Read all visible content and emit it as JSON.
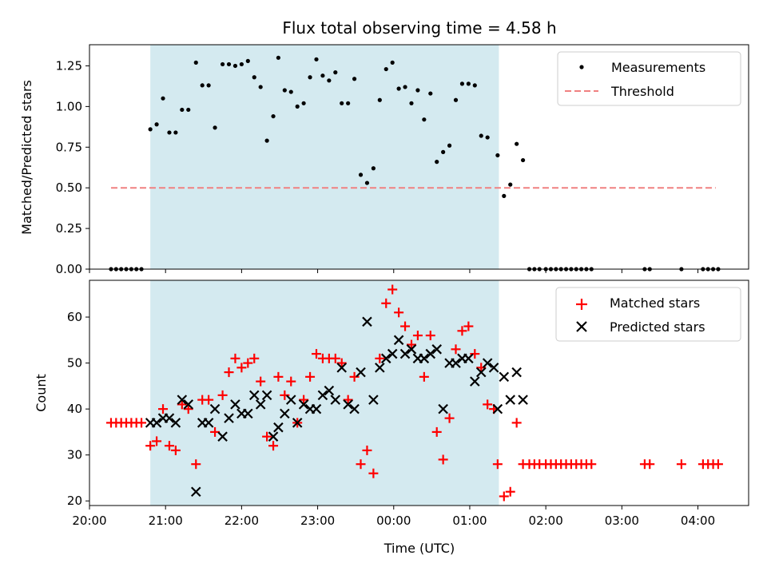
{
  "chart_data": [
    {
      "type": "scatter",
      "title": "Flux total observing time = 4.58 h",
      "ylabel": "Matched/Predicted stars",
      "xlim": [
        "20:00",
        "04:40"
      ],
      "ylim": [
        0,
        1.38
      ],
      "yticks": [
        "0.00",
        "0.25",
        "0.50",
        "0.75",
        "1.00",
        "1.25"
      ],
      "ytick_values": [
        0,
        0.25,
        0.5,
        0.75,
        1.0,
        1.25
      ],
      "shaded_span": [
        "20:48",
        "01:23"
      ],
      "shaded_color": "#d4eaf0",
      "legend": {
        "placement": "top-right",
        "entries": [
          "Measurements",
          "Threshold"
        ]
      },
      "threshold": {
        "name": "Threshold",
        "value": 0.5,
        "x": [
          "20:17",
          "04:14"
        ],
        "color": "#f08080"
      },
      "series": [
        {
          "name": "Measurements",
          "color": "#000000",
          "points": [
            [
              "20:17",
              0
            ],
            [
              "20:21",
              0
            ],
            [
              "20:25",
              0
            ],
            [
              "20:29",
              0
            ],
            [
              "20:33",
              0
            ],
            [
              "20:37",
              0
            ],
            [
              "20:41",
              0
            ],
            [
              "20:48",
              0.86
            ],
            [
              "20:53",
              0.89
            ],
            [
              "20:58",
              1.05
            ],
            [
              "21:03",
              0.84
            ],
            [
              "21:08",
              0.84
            ],
            [
              "21:13",
              0.98
            ],
            [
              "21:18",
              0.98
            ],
            [
              "21:24",
              1.27
            ],
            [
              "21:29",
              1.13
            ],
            [
              "21:34",
              1.13
            ],
            [
              "21:39",
              0.87
            ],
            [
              "21:45",
              1.26
            ],
            [
              "21:50",
              1.26
            ],
            [
              "21:55",
              1.25
            ],
            [
              "22:00",
              1.26
            ],
            [
              "22:05",
              1.28
            ],
            [
              "22:10",
              1.18
            ],
            [
              "22:15",
              1.12
            ],
            [
              "22:20",
              0.79
            ],
            [
              "22:25",
              0.94
            ],
            [
              "22:29",
              1.3
            ],
            [
              "22:34",
              1.1
            ],
            [
              "22:39",
              1.09
            ],
            [
              "22:44",
              1.0
            ],
            [
              "22:49",
              1.02
            ],
            [
              "22:54",
              1.18
            ],
            [
              "22:59",
              1.29
            ],
            [
              "23:04",
              1.19
            ],
            [
              "23:09",
              1.16
            ],
            [
              "23:14",
              1.21
            ],
            [
              "23:19",
              1.02
            ],
            [
              "23:24",
              1.02
            ],
            [
              "23:29",
              1.17
            ],
            [
              "23:34",
              0.58
            ],
            [
              "23:39",
              0.53
            ],
            [
              "23:44",
              0.62
            ],
            [
              "23:49",
              1.04
            ],
            [
              "23:54",
              1.23
            ],
            [
              "23:59",
              1.27
            ],
            [
              "00:04",
              1.11
            ],
            [
              "00:09",
              1.12
            ],
            [
              "00:14",
              1.02
            ],
            [
              "00:19",
              1.1
            ],
            [
              "00:24",
              0.92
            ],
            [
              "00:29",
              1.08
            ],
            [
              "00:34",
              0.66
            ],
            [
              "00:39",
              0.72
            ],
            [
              "00:44",
              0.76
            ],
            [
              "00:49",
              1.04
            ],
            [
              "00:54",
              1.14
            ],
            [
              "00:59",
              1.14
            ],
            [
              "01:04",
              1.13
            ],
            [
              "01:09",
              0.82
            ],
            [
              "01:14",
              0.81
            ],
            [
              "01:22",
              0.7
            ],
            [
              "01:27",
              0.45
            ],
            [
              "01:32",
              0.52
            ],
            [
              "01:37",
              0.77
            ],
            [
              "01:42",
              0.67
            ],
            [
              "01:47",
              0
            ],
            [
              "01:51",
              0
            ],
            [
              "01:55",
              0
            ],
            [
              "02:00",
              0
            ],
            [
              "02:04",
              0
            ],
            [
              "02:08",
              0
            ],
            [
              "02:12",
              0
            ],
            [
              "02:16",
              0
            ],
            [
              "02:20",
              0
            ],
            [
              "02:24",
              0
            ],
            [
              "02:28",
              0
            ],
            [
              "02:32",
              0
            ],
            [
              "02:36",
              0
            ],
            [
              "03:18",
              0
            ],
            [
              "03:22",
              0
            ],
            [
              "03:47",
              0
            ],
            [
              "04:04",
              0
            ],
            [
              "04:08",
              0
            ],
            [
              "04:12",
              0
            ],
            [
              "04:16",
              0
            ]
          ]
        }
      ]
    },
    {
      "type": "scatter",
      "xlabel": "Time (UTC)",
      "ylabel": "Count",
      "xlim": [
        "20:00",
        "04:40"
      ],
      "ylim": [
        19,
        68
      ],
      "xticks": [
        "20:00",
        "21:00",
        "22:00",
        "23:00",
        "00:00",
        "01:00",
        "02:00",
        "03:00",
        "04:00"
      ],
      "yticks": [
        "20",
        "30",
        "40",
        "50",
        "60"
      ],
      "ytick_values": [
        20,
        30,
        40,
        50,
        60
      ],
      "shaded_span": [
        "20:48",
        "01:23"
      ],
      "shaded_color": "#d4eaf0",
      "legend": {
        "placement": "top-right",
        "entries": [
          "Matched stars",
          "Predicted stars"
        ]
      },
      "series": [
        {
          "name": "Matched stars",
          "marker": "plus",
          "color": "#ff0000",
          "points": [
            [
              "20:17",
              37
            ],
            [
              "20:21",
              37
            ],
            [
              "20:25",
              37
            ],
            [
              "20:29",
              37
            ],
            [
              "20:33",
              37
            ],
            [
              "20:37",
              37
            ],
            [
              "20:41",
              37
            ],
            [
              "20:48",
              32
            ],
            [
              "20:53",
              33
            ],
            [
              "20:58",
              40
            ],
            [
              "21:03",
              32
            ],
            [
              "21:08",
              31
            ],
            [
              "21:13",
              41
            ],
            [
              "21:18",
              40
            ],
            [
              "21:24",
              28
            ],
            [
              "21:29",
              42
            ],
            [
              "21:34",
              42
            ],
            [
              "21:39",
              35
            ],
            [
              "21:45",
              43
            ],
            [
              "21:50",
              48
            ],
            [
              "21:55",
              51
            ],
            [
              "22:00",
              49
            ],
            [
              "22:05",
              50
            ],
            [
              "22:10",
              51
            ],
            [
              "22:15",
              46
            ],
            [
              "22:20",
              34
            ],
            [
              "22:25",
              32
            ],
            [
              "22:29",
              47
            ],
            [
              "22:34",
              43
            ],
            [
              "22:39",
              46
            ],
            [
              "22:44",
              37
            ],
            [
              "22:49",
              42
            ],
            [
              "22:54",
              47
            ],
            [
              "22:59",
              52
            ],
            [
              "23:04",
              51
            ],
            [
              "23:09",
              51
            ],
            [
              "23:14",
              51
            ],
            [
              "23:19",
              50
            ],
            [
              "23:24",
              42
            ],
            [
              "23:29",
              47
            ],
            [
              "23:34",
              28
            ],
            [
              "23:39",
              31
            ],
            [
              "23:44",
              26
            ],
            [
              "23:49",
              51
            ],
            [
              "23:54",
              63
            ],
            [
              "23:59",
              66
            ],
            [
              "00:04",
              61
            ],
            [
              "00:09",
              58
            ],
            [
              "00:14",
              54
            ],
            [
              "00:19",
              56
            ],
            [
              "00:24",
              47
            ],
            [
              "00:29",
              56
            ],
            [
              "00:34",
              35
            ],
            [
              "00:39",
              29
            ],
            [
              "00:44",
              38
            ],
            [
              "00:49",
              53
            ],
            [
              "00:54",
              57
            ],
            [
              "00:59",
              58
            ],
            [
              "01:04",
              52
            ],
            [
              "01:09",
              49
            ],
            [
              "01:14",
              41
            ],
            [
              "01:19",
              40
            ],
            [
              "01:22",
              28
            ],
            [
              "01:27",
              21
            ],
            [
              "01:32",
              22
            ],
            [
              "01:37",
              37
            ],
            [
              "01:42",
              28
            ],
            [
              "01:47",
              28
            ],
            [
              "01:51",
              28
            ],
            [
              "01:55",
              28
            ],
            [
              "02:00",
              28
            ],
            [
              "02:04",
              28
            ],
            [
              "02:08",
              28
            ],
            [
              "02:12",
              28
            ],
            [
              "02:16",
              28
            ],
            [
              "02:20",
              28
            ],
            [
              "02:24",
              28
            ],
            [
              "02:28",
              28
            ],
            [
              "02:32",
              28
            ],
            [
              "02:36",
              28
            ],
            [
              "03:18",
              28
            ],
            [
              "03:22",
              28
            ],
            [
              "03:47",
              28
            ],
            [
              "04:04",
              28
            ],
            [
              "04:08",
              28
            ],
            [
              "04:12",
              28
            ],
            [
              "04:16",
              28
            ]
          ]
        },
        {
          "name": "Predicted stars",
          "marker": "x",
          "color": "#000000",
          "points": [
            [
              "20:48",
              37
            ],
            [
              "20:53",
              37
            ],
            [
              "20:58",
              38
            ],
            [
              "21:03",
              38
            ],
            [
              "21:08",
              37
            ],
            [
              "21:13",
              42
            ],
            [
              "21:18",
              41
            ],
            [
              "21:24",
              22
            ],
            [
              "21:29",
              37
            ],
            [
              "21:34",
              37
            ],
            [
              "21:39",
              40
            ],
            [
              "21:45",
              34
            ],
            [
              "21:50",
              38
            ],
            [
              "21:55",
              41
            ],
            [
              "22:00",
              39
            ],
            [
              "22:05",
              39
            ],
            [
              "22:10",
              43
            ],
            [
              "22:15",
              41
            ],
            [
              "22:20",
              43
            ],
            [
              "22:25",
              34
            ],
            [
              "22:29",
              36
            ],
            [
              "22:34",
              39
            ],
            [
              "22:39",
              42
            ],
            [
              "22:44",
              37
            ],
            [
              "22:49",
              41
            ],
            [
              "22:54",
              40
            ],
            [
              "22:59",
              40
            ],
            [
              "23:04",
              43
            ],
            [
              "23:09",
              44
            ],
            [
              "23:14",
              42
            ],
            [
              "23:19",
              49
            ],
            [
              "23:24",
              41
            ],
            [
              "23:29",
              40
            ],
            [
              "23:34",
              48
            ],
            [
              "23:39",
              59
            ],
            [
              "23:44",
              42
            ],
            [
              "23:49",
              49
            ],
            [
              "23:54",
              51
            ],
            [
              "23:59",
              52
            ],
            [
              "00:04",
              55
            ],
            [
              "00:09",
              52
            ],
            [
              "00:14",
              53
            ],
            [
              "00:19",
              51
            ],
            [
              "00:24",
              51
            ],
            [
              "00:29",
              52
            ],
            [
              "00:34",
              53
            ],
            [
              "00:39",
              40
            ],
            [
              "00:44",
              50
            ],
            [
              "00:49",
              50
            ],
            [
              "00:54",
              51
            ],
            [
              "00:59",
              51
            ],
            [
              "01:04",
              46
            ],
            [
              "01:09",
              48
            ],
            [
              "01:14",
              50
            ],
            [
              "01:19",
              49
            ],
            [
              "01:22",
              40
            ],
            [
              "01:27",
              47
            ],
            [
              "01:32",
              42
            ],
            [
              "01:37",
              48
            ],
            [
              "01:42",
              42
            ]
          ]
        }
      ]
    }
  ]
}
